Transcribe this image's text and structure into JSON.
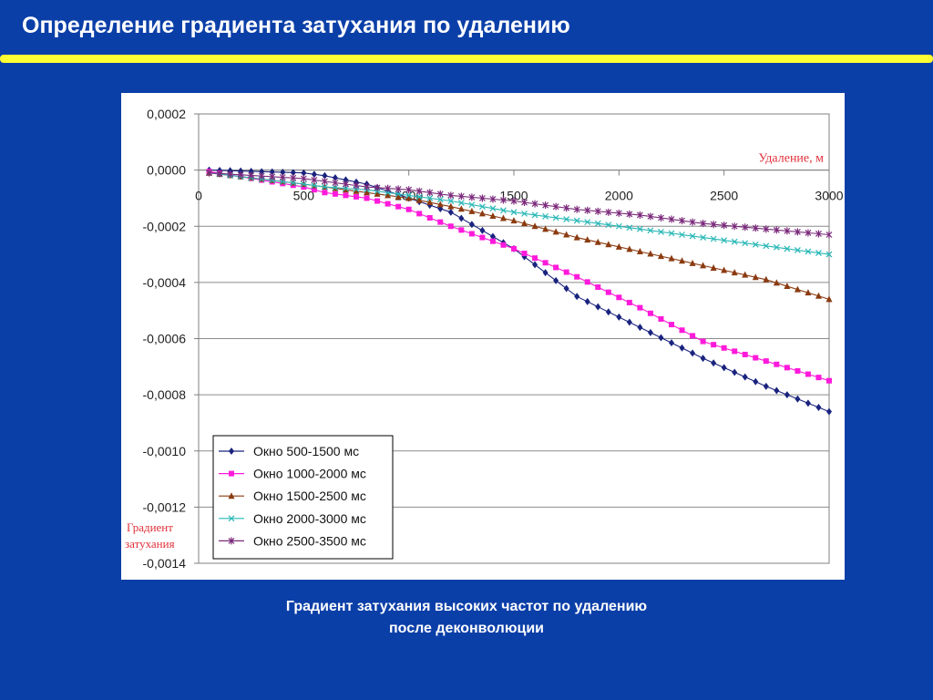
{
  "slide": {
    "title": "Определение градиента затухания по удалению",
    "caption_line1": "Градиент затухания высоких частот по удалению",
    "caption_line2": "после деконволюции"
  },
  "colors": {
    "background": "#0b3fa8",
    "title_rule": "#ffff33",
    "annotation": "#e0303a"
  },
  "chart_data": {
    "type": "line",
    "x_axis_title": "Удаление, м",
    "y_axis_title_line1": "Градиент",
    "y_axis_title_line2": "затухания",
    "xlim": [
      0,
      3000
    ],
    "ylim": [
      -0.0014,
      0.0002
    ],
    "x_ticks": [
      0,
      500,
      1000,
      1500,
      2000,
      2500,
      3000
    ],
    "x_tick_labels": [
      "0",
      "500",
      "1000",
      "1500",
      "2000",
      "2500",
      "3000"
    ],
    "y_ticks": [
      0.0002,
      0.0,
      -0.0002,
      -0.0004,
      -0.0006,
      -0.0008,
      -0.001,
      -0.0012,
      -0.0014
    ],
    "y_tick_labels": [
      "0,0002",
      "0,0000",
      "-0,0002",
      "-0,0004",
      "-0,0006",
      "-0,0008",
      "-0,0010",
      "-0,0012",
      "-0,0014"
    ],
    "grid": "horizontal",
    "legend_position": "bottom-left",
    "x": [
      50,
      500,
      600,
      800,
      1000,
      1200,
      1500,
      1800,
      2100,
      2400,
      2700,
      3000
    ],
    "series": [
      {
        "name": "Окно 500-1500 мс",
        "color": "#1a237e",
        "marker": "diamond",
        "values": [
          0.0,
          -1e-05,
          -2e-05,
          -5e-05,
          -0.0001,
          -0.00015,
          -0.00028,
          -0.00045,
          -0.00056,
          -0.00067,
          -0.00077,
          -0.00086
        ]
      },
      {
        "name": "Окно 1000-2000 мс",
        "color": "#ff1adb",
        "marker": "square",
        "values": [
          -5e-06,
          -6e-05,
          -8e-05,
          -0.0001,
          -0.00014,
          -0.0002,
          -0.00028,
          -0.00038,
          -0.00049,
          -0.00061,
          -0.00068,
          -0.00075
        ]
      },
      {
        "name": "Окно 1500-2500 мс",
        "color": "#8b3a10",
        "marker": "triangle",
        "values": [
          -1e-05,
          -5e-05,
          -6e-05,
          -8e-05,
          -0.0001,
          -0.00013,
          -0.00018,
          -0.00024,
          -0.00029,
          -0.00034,
          -0.00039,
          -0.00046
        ]
      },
      {
        "name": "Окно 2000-3000 мс",
        "color": "#2ab7b7",
        "marker": "cross",
        "values": [
          -1e-05,
          -5e-05,
          -6e-05,
          -7e-05,
          -9e-05,
          -0.00011,
          -0.00015,
          -0.00018,
          -0.00021,
          -0.00024,
          -0.00027,
          -0.0003
        ]
      },
      {
        "name": "Окно 2500-3500 мс",
        "color": "#7b2a7b",
        "marker": "star",
        "values": [
          -1e-05,
          -3e-05,
          -4e-05,
          -6e-05,
          -7e-05,
          -9e-05,
          -0.00011,
          -0.00014,
          -0.00016,
          -0.00019,
          -0.00021,
          -0.00023
        ]
      }
    ]
  }
}
